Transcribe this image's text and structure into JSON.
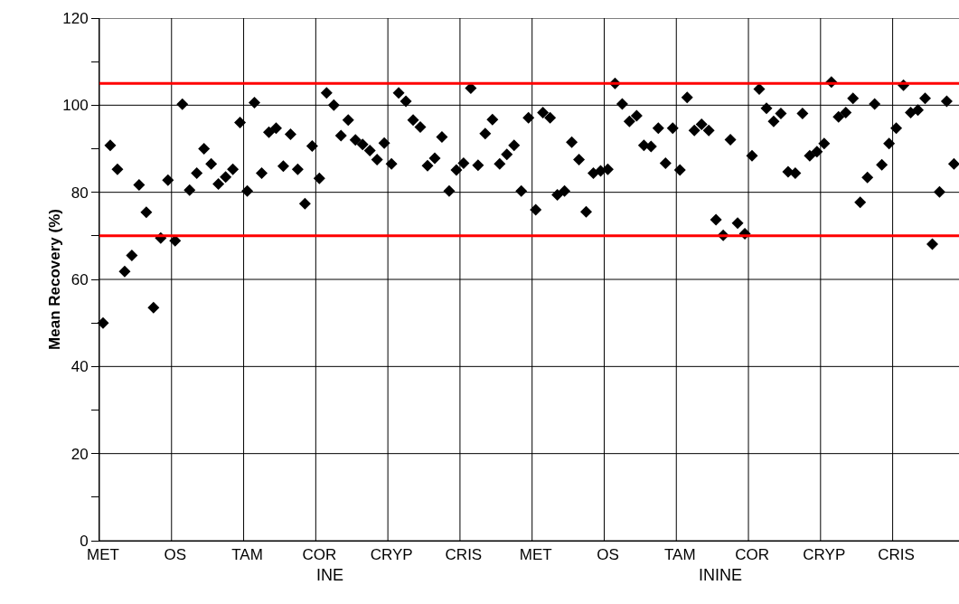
{
  "chart_data": {
    "type": "scatter",
    "ylabel": "Mean Recovery (%)",
    "marker": "diamond",
    "grid": true,
    "categories": [
      "MET",
      null,
      null,
      null,
      null,
      null,
      null,
      null,
      null,
      null,
      "OS",
      null,
      null,
      null,
      null,
      null,
      null,
      null,
      null,
      null,
      "TAM",
      null,
      null,
      null,
      null,
      null,
      null,
      null,
      null,
      null,
      "COR",
      null,
      null,
      null,
      null,
      null,
      null,
      null,
      null,
      null,
      "CRYP",
      null,
      null,
      null,
      null,
      null,
      null,
      null,
      null,
      null,
      "CRIS",
      null,
      null,
      null,
      null,
      null,
      null,
      null,
      null,
      null,
      "MET",
      null,
      null,
      null,
      null,
      null,
      null,
      null,
      null,
      null,
      "OS",
      null,
      null,
      null,
      null,
      null,
      null,
      null,
      null,
      null,
      "TAM",
      null,
      null,
      null,
      null,
      null,
      null,
      null,
      null,
      null,
      "COR",
      null,
      null,
      null,
      null,
      null,
      null,
      null,
      null,
      null,
      "CRYP",
      null,
      null,
      null,
      null,
      null,
      null,
      null,
      null,
      null,
      "CRIS",
      null,
      null,
      null,
      null,
      null,
      null,
      null,
      null
    ],
    "ylim": [
      0,
      120
    ],
    "yticks": [
      0,
      {
        "value": 10,
        "label": null
      },
      20,
      {
        "value": 30,
        "label": null
      },
      40,
      {
        "value": 50,
        "label": null
      },
      60,
      {
        "value": 70,
        "label": null
      },
      80,
      {
        "value": 90,
        "label": null
      },
      100,
      {
        "value": 110,
        "label": null
      },
      120
    ],
    "ref_lines": [
      {
        "axis": "y",
        "value": 105,
        "color": "#ff0000"
      },
      {
        "axis": "y",
        "value": 70,
        "color": "#ff0000"
      }
    ],
    "annotations": [
      "INE",
      "ININE"
    ],
    "series": [
      {
        "color": "#000000",
        "values": [
          50,
          90.8,
          85.3,
          61.8,
          65.5,
          81.7,
          75.4,
          53.5,
          69.5,
          82.8,
          68.9,
          100.2,
          80.5,
          84.4,
          90,
          86.5,
          81.9,
          83.5,
          85.3,
          96,
          80.3,
          100.6,
          84.4,
          93.8,
          94.7,
          86,
          93.3,
          85.3,
          77.4,
          90.6,
          83.2,
          102.8,
          100,
          93,
          96.6,
          92,
          91,
          89.6,
          87.5,
          91.3,
          86.5,
          102.8,
          100.9,
          96.6,
          95,
          86.1,
          87.8,
          92.7,
          80.3,
          85.1,
          86.7,
          103.9,
          86.2,
          93.5,
          96.7,
          86.5,
          88.7,
          90.8,
          80.3,
          97.1,
          76,
          98.3,
          97.1,
          79.4,
          80.3,
          91.5,
          87.5,
          75.5,
          84.4,
          84.9,
          85.3,
          105,
          100.3,
          96.3,
          97.6,
          90.8,
          90.5,
          94.7,
          86.7,
          94.7,
          85.1,
          101.8,
          94.2,
          95.6,
          94.2,
          73.7,
          70.1,
          92.1,
          72.9,
          70.5,
          88.4,
          103.7,
          99.3,
          96.3,
          98.1,
          84.7,
          84.4,
          98.1,
          88.4,
          89.3,
          91.2,
          105.3,
          97.3,
          98.3,
          101.6,
          77.7,
          83.4,
          100.3,
          86.3,
          91.2,
          94.7,
          104.6,
          98.3,
          98.9,
          101.6,
          68.1,
          80.1,
          100.9,
          86.5
        ]
      }
    ]
  }
}
